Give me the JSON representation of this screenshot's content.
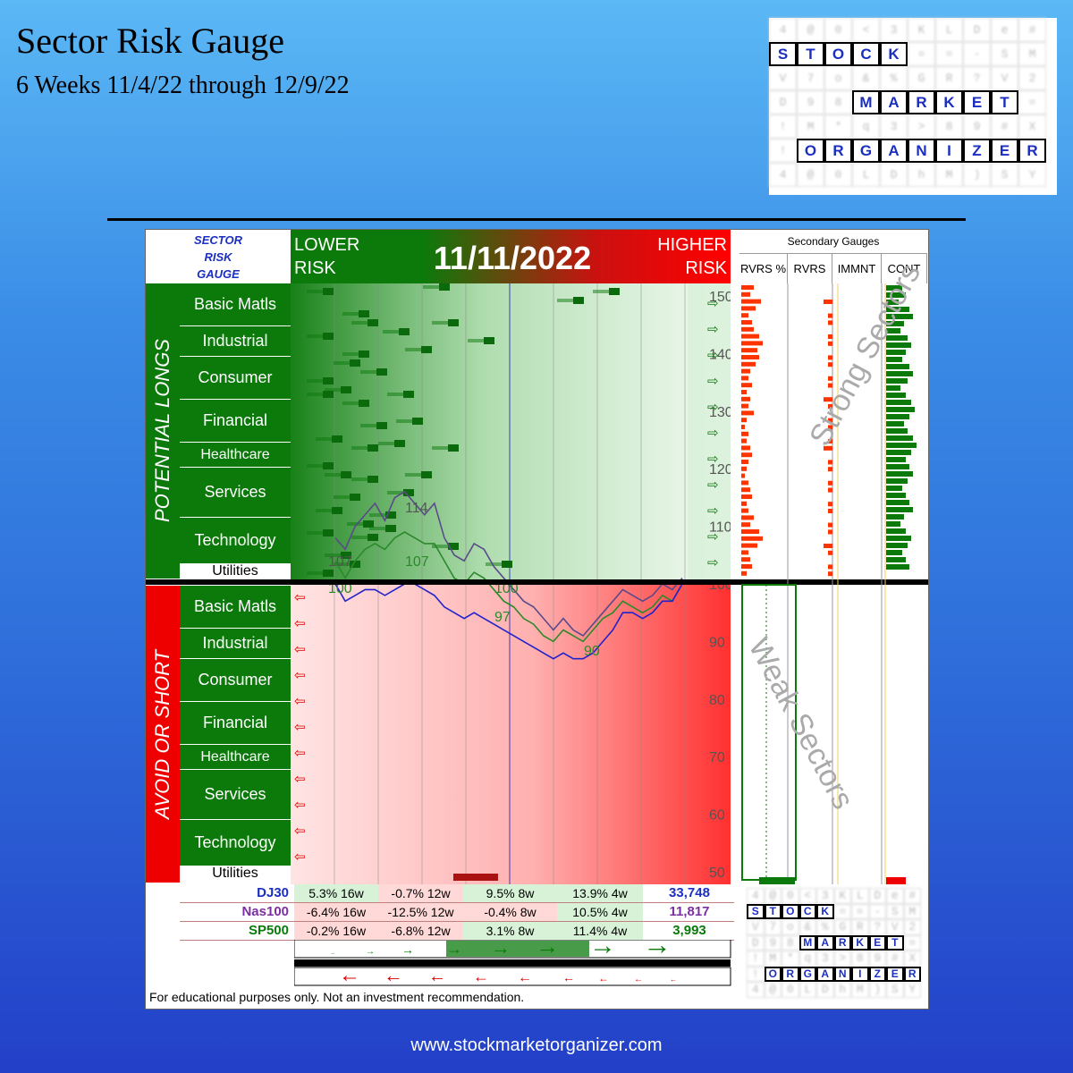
{
  "header": {
    "title": "Sector Risk Gauge",
    "subtitle": "6 Weeks 11/4/22 through 12/9/22"
  },
  "footer": {
    "url": "www.stockmarketorganizer.com"
  },
  "colors": {
    "green": "#0b7a0b",
    "red": "#ee0000",
    "blue_text": "#1a2fc0",
    "purple": "#7b2fa0"
  },
  "logo": {
    "words": [
      "STOCK",
      "MARKET",
      "ORGANIZER"
    ],
    "grid": [
      [
        "4",
        "@",
        "0",
        "<",
        "3",
        "K",
        "L",
        "D",
        "e",
        "#"
      ],
      [
        "S",
        "T",
        "O",
        "C",
        "K",
        "=",
        "=",
        "-",
        "S",
        "M"
      ],
      [
        "V",
        "7",
        "o",
        "&",
        "%",
        "G",
        "R",
        "?",
        "V",
        "2"
      ],
      [
        "D",
        "9",
        "8",
        "M",
        "A",
        "R",
        "K",
        "E",
        "T",
        "="
      ],
      [
        "!",
        "M",
        "*",
        "q",
        "3",
        ">",
        "8",
        "9",
        "#",
        "X"
      ],
      [
        "!",
        "O",
        "R",
        "G",
        "A",
        "N",
        "I",
        "Z",
        "E",
        "R"
      ],
      [
        "4",
        "@",
        "0",
        "L",
        "D",
        "h",
        "M",
        ")",
        "S",
        "Y"
      ]
    ]
  },
  "gauge": {
    "title_lines": [
      "SECTOR",
      "RISK",
      "GAUGE"
    ],
    "lower_risk": [
      "LOWER",
      "RISK"
    ],
    "higher_risk": [
      "HIGHER",
      "RISK"
    ],
    "date": "11/11/2022",
    "potential_longs": "POTENTIAL LONGS",
    "avoid_or_short": "AVOID OR SHORT",
    "sectors": [
      "Basic Matls",
      "Industrial",
      "Consumer",
      "Financial",
      "Healthcare",
      "Services",
      "Technology",
      "Utilities"
    ],
    "disclaimer": "For educational purposes only.  Not an investment recommendation."
  },
  "secondary": {
    "title": "Secondary Gauges",
    "headers": [
      "RVRS %",
      "RVRS",
      "IMMNT",
      "CONT"
    ],
    "strong": "Strong Sectors",
    "weak": "Weak Sectors"
  },
  "indices": [
    {
      "name": "DJ30",
      "cells": [
        "5.3% 16w",
        "-0.7% 12w",
        "9.5% 8w",
        "13.9% 4w"
      ],
      "value": "33,748",
      "color": "#1a2fc0"
    },
    {
      "name": "Nas100",
      "cells": [
        "-6.4% 16w",
        "-12.5% 12w",
        "-0.4% 8w",
        "10.5% 4w"
      ],
      "value": "11,817",
      "color": "#7b2fa0"
    },
    {
      "name": "SP500",
      "cells": [
        "-0.2% 16w",
        "-6.8% 12w",
        "3.1% 8w",
        "11.4% 4w"
      ],
      "value": "3,993",
      "color": "#0b7a0b"
    }
  ],
  "chart_data": {
    "type": "line",
    "y_ticks": [
      50,
      60,
      70,
      80,
      90,
      100,
      110,
      120,
      130,
      140,
      150
    ],
    "ylim": [
      50,
      150
    ],
    "annotations": [
      "107",
      "114",
      "107",
      "100",
      "100",
      "97",
      "90"
    ],
    "series": [
      {
        "name": "Nas100",
        "color": "#5a4a8a",
        "values": [
          108,
          106,
          110,
          112,
          114,
          111,
          115,
          116,
          114,
          112,
          114,
          108,
          105,
          104,
          107,
          106,
          103,
          101,
          99,
          97,
          96,
          94,
          92,
          94,
          92,
          91,
          93,
          95,
          97,
          99,
          98,
          97,
          98,
          100,
          99,
          101
        ]
      },
      {
        "name": "SP500",
        "color": "#2a8a2a",
        "values": [
          104,
          101,
          104,
          106,
          107,
          106,
          108,
          109,
          108,
          107,
          107,
          104,
          101,
          100,
          102,
          101,
          99,
          97,
          96,
          94,
          93,
          91,
          90,
          92,
          91,
          90,
          92,
          94,
          95,
          97,
          96,
          95,
          96,
          98,
          97,
          100
        ]
      },
      {
        "name": "DJ30",
        "color": "#2222cc",
        "values": [
          100,
          97,
          98,
          99,
          99,
          98,
          99,
          100,
          100,
          99,
          98,
          96,
          95,
          94,
          95,
          94,
          93,
          92,
          91,
          90,
          89,
          88,
          87,
          88,
          87,
          87,
          88,
          90,
          92,
          95,
          95,
          94,
          95,
          97,
          97,
          100
        ]
      }
    ]
  }
}
